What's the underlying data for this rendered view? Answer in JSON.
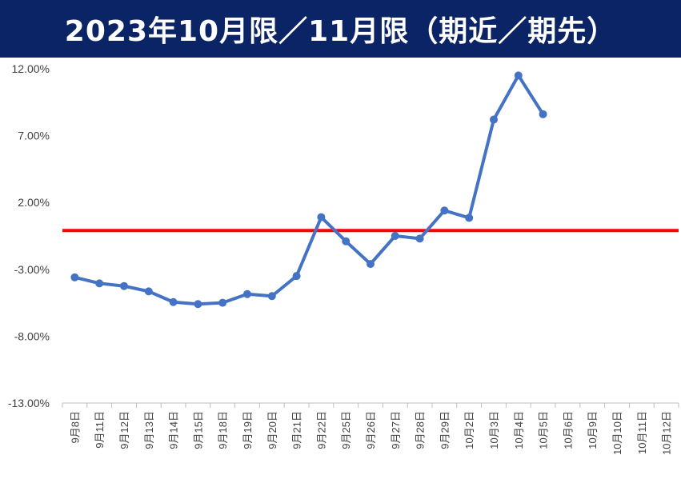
{
  "chart_data": {
    "type": "line",
    "title": "2023年10月限／11月限（期近／期先）",
    "xlabel": "",
    "ylabel": "",
    "ylim": [
      -13,
      12
    ],
    "y_ticks": [
      12,
      7,
      2,
      -3,
      -8,
      -13
    ],
    "y_tick_labels": [
      "12.00%",
      "7.00%",
      "2.00%",
      "-3.00%",
      "-8.00%",
      "-13.00%"
    ],
    "categories": [
      "9月8日",
      "9月11日",
      "9月12日",
      "9月13日",
      "9月14日",
      "9月15日",
      "9月18日",
      "9月19日",
      "9月20日",
      "9月21日",
      "9月22日",
      "9月25日",
      "9月26日",
      "9月27日",
      "9月28日",
      "9月29日",
      "10月2日",
      "10月3日",
      "10月4日",
      "10月5日",
      "10月6日",
      "10月9日",
      "10月10日",
      "10月11日",
      "10月12日"
    ],
    "series": [
      {
        "color": "#4472c4",
        "values": [
          -3.6,
          -4.05,
          -4.25,
          -4.65,
          -5.45,
          -5.6,
          -5.5,
          -4.85,
          -5.0,
          -3.5,
          0.9,
          -0.9,
          -2.6,
          -0.5,
          -0.7,
          1.4,
          0.85,
          8.2,
          11.5,
          8.6,
          null,
          null,
          null,
          null,
          null
        ]
      }
    ],
    "reference_line": {
      "value": -0.1,
      "color": "#ff0000"
    },
    "grid": false,
    "legend": "none"
  }
}
